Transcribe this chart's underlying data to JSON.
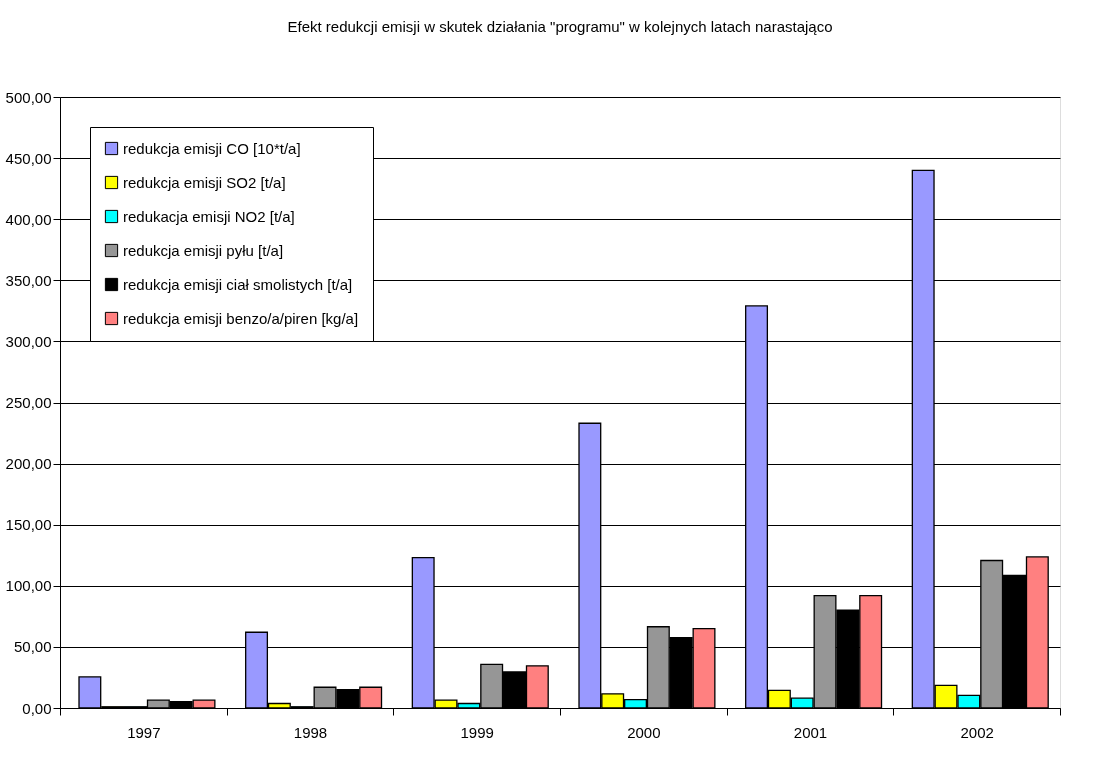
{
  "chart_data": {
    "type": "bar",
    "title": "Efekt redukcji emisji w skutek działania \"programu\" w kolejnych latach narastająco",
    "categories": [
      "1997",
      "1998",
      "1999",
      "2000",
      "2001",
      "2002"
    ],
    "series": [
      {
        "name": "redukcja emisji CO [10*t/a]",
        "color": "#9999ff",
        "values": [
          25.4,
          62,
          123,
          233,
          329,
          440
        ]
      },
      {
        "name": "redukcja emisji SO2 [t/a]",
        "color": "#ffff00",
        "values": [
          1,
          3.7,
          6.4,
          11.6,
          14.5,
          18.5
        ]
      },
      {
        "name": "redukacja emisji NO2 [t/a]",
        "color": "#00ffff",
        "values": [
          1,
          1,
          3.7,
          6.9,
          8,
          10.4
        ]
      },
      {
        "name": "redukcja emisji pyłu [t/a]",
        "color": "#969696",
        "values": [
          6.4,
          17,
          35.7,
          66.5,
          92,
          120.7
        ]
      },
      {
        "name": "redukcja emisji ciał smolistych [t/a]",
        "color": "#000000",
        "values": [
          5.2,
          15,
          29.5,
          57.6,
          80,
          108.6
        ]
      },
      {
        "name": "redukcja emisji benzo/a/piren [kg/a]",
        "color": "#ff8080",
        "values": [
          6.4,
          17,
          34.5,
          65,
          92,
          123.6
        ]
      }
    ],
    "ylim": [
      0,
      500
    ],
    "yticks": [
      {
        "value": 0,
        "label": "0,00"
      },
      {
        "value": 50,
        "label": "50,00"
      },
      {
        "value": 100,
        "label": "100,00"
      },
      {
        "value": 150,
        "label": "150,00"
      },
      {
        "value": 200,
        "label": "200,00"
      },
      {
        "value": 250,
        "label": "250,00"
      },
      {
        "value": 300,
        "label": "300,00"
      },
      {
        "value": 350,
        "label": "350,00"
      },
      {
        "value": 400,
        "label": "400,00"
      },
      {
        "value": 450,
        "label": "450,00"
      },
      {
        "value": 500,
        "label": "500,00"
      }
    ],
    "grid": "y",
    "legend": "top left"
  }
}
